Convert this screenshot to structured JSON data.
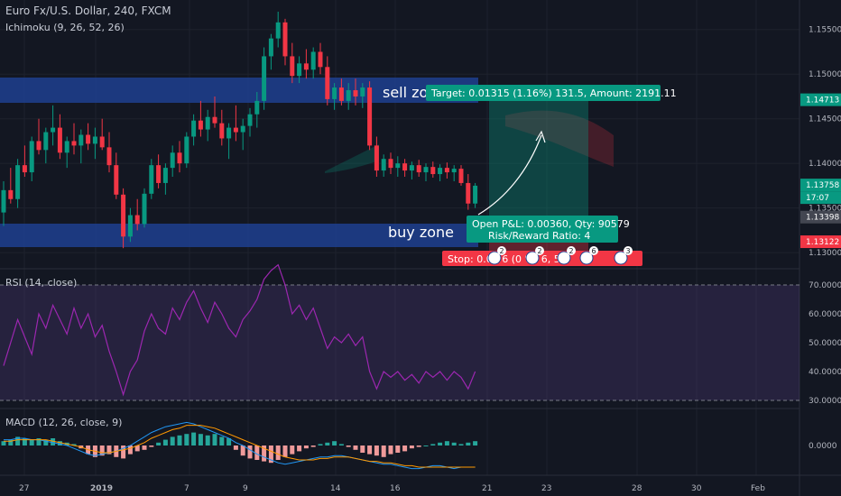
{
  "header": {
    "symbol": "Euro Fx/U.S. Dollar, 240, FXCM",
    "ichimoku": "Ichimoku (9, 26, 52, 26)"
  },
  "price_axis": {
    "ticks": [
      "1.15500",
      "1.15000",
      "1.14500",
      "1.14000",
      "1.13500",
      "1.13000"
    ],
    "tags": [
      {
        "text": "1.14713",
        "color": "#089981"
      },
      {
        "text": "1.13758",
        "color": "#089981"
      },
      {
        "text": "17:07",
        "color": "#089981"
      },
      {
        "text": "1.13398",
        "color": "#434651"
      },
      {
        "text": "1.13122",
        "color": "#f23645"
      }
    ]
  },
  "zones": {
    "sell_label": "sell zone",
    "buy_label": "buy zone"
  },
  "position_tool": {
    "target_text": "Target: 0.01315 (1.16%) 131.5, Amount: 2191.11",
    "open_text": "Open P&L: 0.00360, Qty: 90579",
    "rr_text": "Risk/Reward Ratio: 4",
    "stop_text": "Stop: 0.00 6 (0  %)  6,  50"
  },
  "event_badges": [
    "2",
    "2",
    "2",
    "6",
    "3"
  ],
  "rsi": {
    "title": "RSI (14, close)",
    "ticks": [
      "70.0000",
      "60.0000",
      "50.0000",
      "40.0000",
      "30.0000"
    ]
  },
  "macd": {
    "title": "MACD (12, 26, close, 9)",
    "tick": "0.0000"
  },
  "time_axis": {
    "labels": [
      "27",
      "2019",
      "7",
      "9",
      "14",
      "16",
      "21",
      "23",
      "28",
      "30",
      "Feb"
    ]
  },
  "colors": {
    "up": "#089981",
    "down": "#f23645",
    "zone": "#1e3f8f",
    "rsi": "#9c27b0",
    "macd": "#2196f3",
    "signal": "#ff9800"
  },
  "chart_data": {
    "type": "candlestick",
    "ylim": [
      1.1288,
      1.1575
    ],
    "candles": [
      [
        1.1345,
        1.138,
        1.133,
        1.137
      ],
      [
        1.137,
        1.1395,
        1.1355,
        1.136
      ],
      [
        1.136,
        1.1405,
        1.135,
        1.1398
      ],
      [
        1.1398,
        1.142,
        1.1385,
        1.139
      ],
      [
        1.139,
        1.143,
        1.138,
        1.1425
      ],
      [
        1.1425,
        1.145,
        1.141,
        1.1415
      ],
      [
        1.1415,
        1.144,
        1.14,
        1.1435
      ],
      [
        1.1435,
        1.1465,
        1.142,
        1.144
      ],
      [
        1.144,
        1.1455,
        1.1405,
        1.1412
      ],
      [
        1.1412,
        1.143,
        1.1395,
        1.1425
      ],
      [
        1.1425,
        1.1445,
        1.141,
        1.142
      ],
      [
        1.142,
        1.1438,
        1.14,
        1.1432
      ],
      [
        1.1432,
        1.1445,
        1.1415,
        1.1422
      ],
      [
        1.1422,
        1.144,
        1.1405,
        1.143
      ],
      [
        1.143,
        1.145,
        1.1415,
        1.1418
      ],
      [
        1.1418,
        1.1435,
        1.139,
        1.1398
      ],
      [
        1.1398,
        1.1412,
        1.136,
        1.1365
      ],
      [
        1.1365,
        1.1372,
        1.1305,
        1.1318
      ],
      [
        1.1318,
        1.135,
        1.1312,
        1.1342
      ],
      [
        1.1342,
        1.136,
        1.1325,
        1.1332
      ],
      [
        1.1332,
        1.1372,
        1.1328,
        1.1366
      ],
      [
        1.1366,
        1.1405,
        1.136,
        1.1398
      ],
      [
        1.1398,
        1.141,
        1.1372,
        1.1378
      ],
      [
        1.1378,
        1.14,
        1.1365,
        1.1395
      ],
      [
        1.1395,
        1.142,
        1.1385,
        1.1412
      ],
      [
        1.1412,
        1.1425,
        1.139,
        1.14
      ],
      [
        1.14,
        1.1435,
        1.1395,
        1.143
      ],
      [
        1.143,
        1.1455,
        1.142,
        1.1448
      ],
      [
        1.1448,
        1.147,
        1.143,
        1.1438
      ],
      [
        1.1438,
        1.146,
        1.1425,
        1.1452
      ],
      [
        1.1452,
        1.1475,
        1.144,
        1.1445
      ],
      [
        1.1445,
        1.146,
        1.142,
        1.1428
      ],
      [
        1.1428,
        1.1445,
        1.1405,
        1.144
      ],
      [
        1.144,
        1.1465,
        1.1425,
        1.1435
      ],
      [
        1.1435,
        1.145,
        1.1415,
        1.1442
      ],
      [
        1.1442,
        1.1462,
        1.143,
        1.1455
      ],
      [
        1.1455,
        1.148,
        1.144,
        1.147
      ],
      [
        1.147,
        1.153,
        1.146,
        1.152
      ],
      [
        1.152,
        1.1545,
        1.1505,
        1.154
      ],
      [
        1.154,
        1.157,
        1.153,
        1.1558
      ],
      [
        1.1558,
        1.1562,
        1.151,
        1.152
      ],
      [
        1.152,
        1.1535,
        1.149,
        1.1498
      ],
      [
        1.1498,
        1.152,
        1.149,
        1.1512
      ],
      [
        1.1512,
        1.1528,
        1.1495,
        1.1505
      ],
      [
        1.1505,
        1.153,
        1.1495,
        1.1525
      ],
      [
        1.1525,
        1.1535,
        1.15,
        1.1508
      ],
      [
        1.1508,
        1.152,
        1.1465,
        1.1472
      ],
      [
        1.1472,
        1.149,
        1.146,
        1.1485
      ],
      [
        1.1485,
        1.1495,
        1.1465,
        1.147
      ],
      [
        1.147,
        1.149,
        1.146,
        1.1482
      ],
      [
        1.1482,
        1.1495,
        1.1465,
        1.1475
      ],
      [
        1.1475,
        1.149,
        1.1462,
        1.1485
      ],
      [
        1.1485,
        1.1492,
        1.1415,
        1.142
      ],
      [
        1.142,
        1.143,
        1.1385,
        1.1392
      ],
      [
        1.1392,
        1.141,
        1.1385,
        1.1405
      ],
      [
        1.1405,
        1.1412,
        1.1388,
        1.1395
      ],
      [
        1.1395,
        1.1408,
        1.1385,
        1.14
      ],
      [
        1.14,
        1.1405,
        1.1385,
        1.1392
      ],
      [
        1.1392,
        1.1402,
        1.1382,
        1.1398
      ],
      [
        1.1398,
        1.1404,
        1.1385,
        1.139
      ],
      [
        1.139,
        1.14,
        1.138,
        1.1396
      ],
      [
        1.1396,
        1.1402,
        1.1384,
        1.1388
      ],
      [
        1.1388,
        1.1399,
        1.138,
        1.1395
      ],
      [
        1.1395,
        1.1401,
        1.1383,
        1.139
      ],
      [
        1.139,
        1.1398,
        1.138,
        1.1394
      ],
      [
        1.1394,
        1.1398,
        1.1375,
        1.1378
      ],
      [
        1.1378,
        1.1388,
        1.1348,
        1.1355
      ],
      [
        1.1355,
        1.1378,
        1.135,
        1.1375
      ]
    ],
    "rsi": [
      42,
      50,
      58,
      52,
      46,
      60,
      55,
      63,
      58,
      53,
      62,
      55,
      60,
      52,
      56,
      47,
      40,
      32,
      40,
      44,
      54,
      60,
      55,
      53,
      62,
      58,
      64,
      68,
      62,
      57,
      64,
      60,
      55,
      52,
      58,
      61,
      65,
      72,
      75,
      77,
      70,
      60,
      63,
      58,
      62,
      55,
      48,
      52,
      50,
      53,
      49,
      52,
      40,
      34,
      40,
      38,
      40,
      37,
      39,
      36,
      40,
      38,
      40,
      37,
      40,
      38,
      34,
      40
    ],
    "macd_hist": [
      3,
      4,
      6,
      5,
      4,
      5,
      4,
      5,
      3,
      2,
      1,
      -2,
      -6,
      -8,
      -7,
      -6,
      -8,
      -9,
      -6,
      -4,
      -3,
      -1,
      2,
      4,
      6,
      7,
      8,
      9,
      8,
      7,
      8,
      6,
      5,
      -3,
      -7,
      -9,
      -10,
      -11,
      -12,
      -10,
      -8,
      -6,
      -4,
      -2,
      -1,
      1,
      2,
      3,
      1,
      -1,
      -3,
      -5,
      -6,
      -7,
      -8,
      -6,
      -5,
      -4,
      -2,
      -1,
      0,
      1,
      2,
      3,
      2,
      1,
      2,
      3
    ],
    "macd_line": [
      4,
      4,
      5,
      5,
      4,
      4,
      3,
      2,
      1,
      0,
      -2,
      -4,
      -6,
      -7,
      -6,
      -5,
      -4,
      -2,
      0,
      3,
      6,
      9,
      11,
      13,
      14,
      15,
      16,
      15,
      13,
      11,
      9,
      7,
      5,
      2,
      0,
      -3,
      -6,
      -8,
      -10,
      -12,
      -13,
      -12,
      -11,
      -10,
      -9,
      -8,
      -8,
      -7,
      -7,
      -8,
      -9,
      -10,
      -11,
      -12,
      -13,
      -13,
      -14,
      -15,
      -16,
      -16,
      -15,
      -14,
      -14,
      -15,
      -16,
      -15,
      -15,
      -15
    ],
    "macd_signal": [
      3,
      3,
      4,
      4,
      4,
      4,
      4,
      3,
      2,
      1,
      0,
      -1,
      -3,
      -4,
      -5,
      -5,
      -4,
      -3,
      -2,
      0,
      2,
      5,
      7,
      9,
      11,
      12,
      14,
      14,
      14,
      13,
      12,
      10,
      8,
      6,
      4,
      2,
      0,
      -2,
      -4,
      -6,
      -8,
      -9,
      -10,
      -10,
      -10,
      -9,
      -9,
      -8,
      -8,
      -8,
      -9,
      -10,
      -11,
      -11,
      -12,
      -12,
      -13,
      -14,
      -14,
      -15,
      -15,
      -15,
      -15,
      -15,
      -15,
      -15,
      -15,
      -15
    ]
  }
}
